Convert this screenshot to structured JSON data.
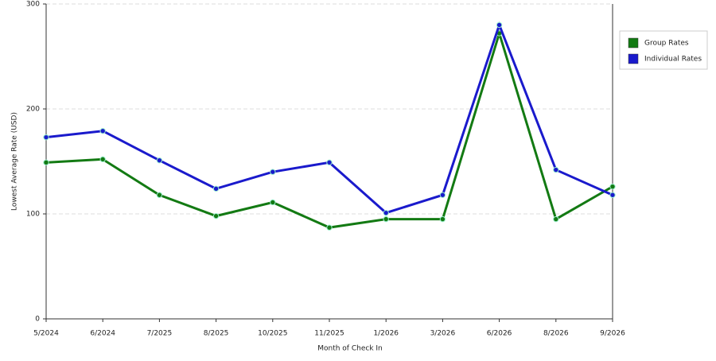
{
  "chart_data": {
    "type": "line",
    "x_label": "Month of Check In",
    "y_label": "Lowest Average Rate (USD)",
    "categories": [
      "5/2024",
      "6/2024",
      "7/2025",
      "8/2025",
      "10/2025",
      "11/2025",
      "1/2026",
      "3/2026",
      "6/2026",
      "8/2026",
      "9/2026"
    ],
    "series": [
      {
        "name": "Group Rates",
        "color": "#137a13",
        "values": [
          149,
          152,
          118,
          98,
          111,
          87,
          95,
          95,
          272,
          95,
          126
        ]
      },
      {
        "name": "Individual Rates",
        "color": "#1a1acc",
        "values": [
          173,
          179,
          151,
          124,
          140,
          149,
          101,
          118,
          280,
          142,
          118
        ]
      }
    ],
    "ylim": [
      0,
      300
    ],
    "yticks": [
      0,
      100,
      200,
      300
    ],
    "grid": true,
    "legend": "right"
  }
}
